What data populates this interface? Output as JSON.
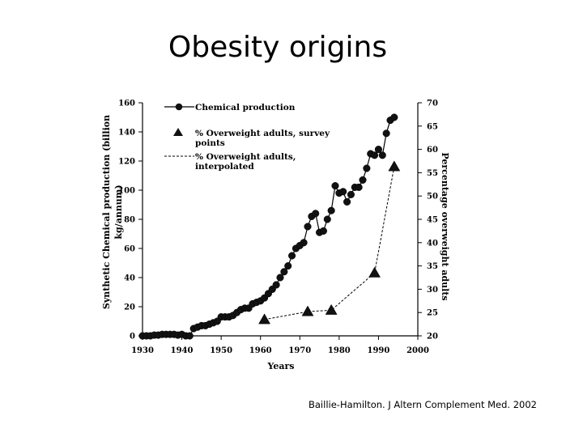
{
  "slide": {
    "title": "Obesity origins",
    "citation": "Baillie-Hamilton. J Altern Complement Med. 2002"
  },
  "chart_data": {
    "type": "line",
    "xlabel": "Years",
    "ylabel_left_lines": [
      "Synthetic Chemical production (billion",
      "kg/annum)"
    ],
    "ylabel_right": "Percentage overweight adults",
    "xlim": [
      1930,
      2000
    ],
    "ylim_left": [
      0,
      160
    ],
    "ylim_right": [
      20,
      70
    ],
    "x_ticks": [
      "1930",
      "1940",
      "1950",
      "1960",
      "1970",
      "1980",
      "1990",
      "2000"
    ],
    "y_left_ticks": [
      "0",
      "20",
      "40",
      "60",
      "80",
      "100",
      "120",
      "140",
      "160"
    ],
    "y_right_ticks": [
      "20",
      "25",
      "30",
      "35",
      "40",
      "45",
      "50",
      "55",
      "60",
      "65",
      "70"
    ],
    "legend": {
      "position": "top-left",
      "chemical": "Chemical production",
      "survey_lines": [
        "% Overweight adults, survey",
        "points"
      ],
      "interpolated_lines": [
        "% Overweight adults,",
        "interpolated"
      ]
    },
    "series": [
      {
        "name": "Chemical production",
        "axis": "left",
        "marker": "circle",
        "x": [
          1930,
          1931,
          1932,
          1933,
          1934,
          1935,
          1936,
          1937,
          1938,
          1939,
          1940,
          1941,
          1942,
          1943,
          1944,
          1945,
          1946,
          1947,
          1948,
          1949,
          1950,
          1951,
          1952,
          1953,
          1954,
          1955,
          1956,
          1957,
          1958,
          1959,
          1960,
          1961,
          1962,
          1963,
          1964,
          1965,
          1966,
          1967,
          1968,
          1969,
          1970,
          1971,
          1972,
          1973,
          1974,
          1975,
          1976,
          1977,
          1978,
          1979,
          1980,
          1981,
          1982,
          1983,
          1984,
          1985,
          1986,
          1987,
          1988,
          1989,
          1990,
          1991,
          1992,
          1993,
          1994
        ],
        "values": [
          0,
          0,
          0,
          0.5,
          0.5,
          1,
          1,
          1,
          1,
          0.5,
          1,
          0,
          0,
          5,
          6,
          7,
          7,
          8,
          9,
          10,
          13,
          13,
          13,
          14,
          16,
          18,
          19,
          19,
          22,
          23,
          24,
          26,
          29,
          32,
          35,
          40,
          44,
          48,
          55,
          60,
          62,
          64,
          75,
          82,
          84,
          71,
          72,
          80,
          86,
          103,
          98,
          99,
          92,
          97,
          102,
          102,
          107,
          115,
          125,
          124,
          128,
          124,
          139,
          148,
          150
        ]
      },
      {
        "name": "% Overweight adults, survey points",
        "axis": "right",
        "marker": "triangle",
        "x": [
          1961,
          1972,
          1978,
          1989,
          1994
        ],
        "values": [
          23.5,
          25.2,
          25.5,
          33.5,
          56.3
        ]
      }
    ]
  }
}
